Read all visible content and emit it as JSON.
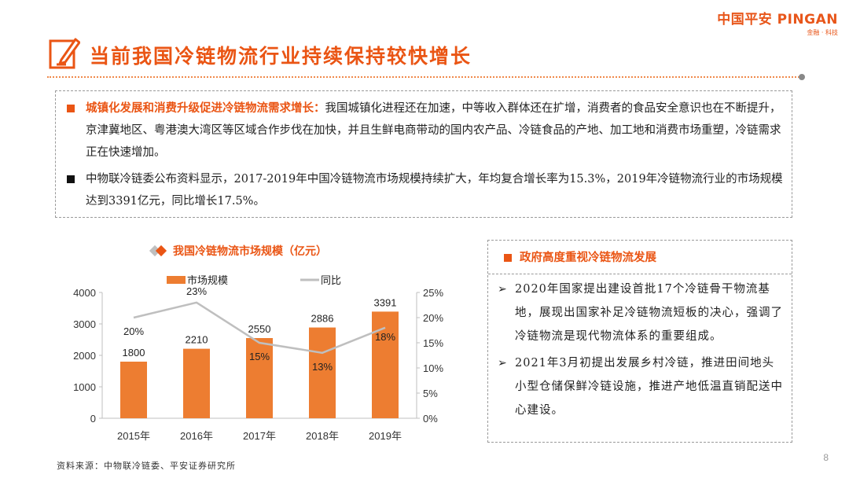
{
  "logo": {
    "brand": "中国平安 PINGAN",
    "tagline": "金融 · 科技"
  },
  "title": "当前我国冷链物流行业持续保持较快增长",
  "paragraph1": {
    "highlight": "城镇化发展和消费升级促进冷链物流需求增长：",
    "body": "我国城镇化进程还在加速，中等收入群体还在扩增，消费者的食品安全意识也在不断提升，京津冀地区、粤港澳大湾区等区域合作步伐在加快，并且生鲜电商带动的国内农产品、冷链食品的产地、加工地和消费市场重塑，冷链需求正在快速增加。"
  },
  "paragraph2": {
    "body": "中物联冷链委公布资料显示，2017-2019年中国冷链物流市场规模持续扩大，年均复合增长率为15.3%，2019年冷链物流行业的市场规模达到3391亿元，同比增长17.5%。"
  },
  "chart_title": "我国冷链物流市场规模（亿元）",
  "chart_data": {
    "type": "bar",
    "categories": [
      "2015年",
      "2016年",
      "2017年",
      "2018年",
      "2019年"
    ],
    "series": [
      {
        "name": "市场规模",
        "type": "bar",
        "axis": "left",
        "color": "#ed7d31",
        "values": [
          1800,
          2210,
          2550,
          2886,
          3391
        ],
        "labels": [
          "1800",
          "2210",
          "2550",
          "2886",
          "3391"
        ]
      },
      {
        "name": "同比",
        "type": "line",
        "axis": "right",
        "color": "#bfbfbf",
        "values": [
          20,
          23,
          15,
          13,
          18
        ],
        "labels": [
          "20%",
          "23%",
          "15%",
          "13%",
          "18%"
        ]
      }
    ],
    "ylim_left": [
      0,
      4000
    ],
    "yticks_left": [
      "0",
      "1000",
      "2000",
      "3000",
      "4000"
    ],
    "ylim_right": [
      0,
      25
    ],
    "yticks_right": [
      "0%",
      "5%",
      "10%",
      "15%",
      "20%",
      "25%"
    ],
    "legend_position": "top",
    "grid": false
  },
  "right_box": {
    "heading": "政府高度重视冷链物流发展",
    "items": [
      "2020年国家提出建设首批17个冷链骨干物流基地，展现出国家补足冷链物流短板的决心，强调了冷链物流是现代物流体系的重要组成。",
      "2021年3月初提出发展乡村冷链，推进田间地头小型仓储保鲜冷链设施，推进产地低温直销配送中心建设。"
    ]
  },
  "source": "资料来源：中物联冷链委、平安证券研究所",
  "page_number": "8"
}
